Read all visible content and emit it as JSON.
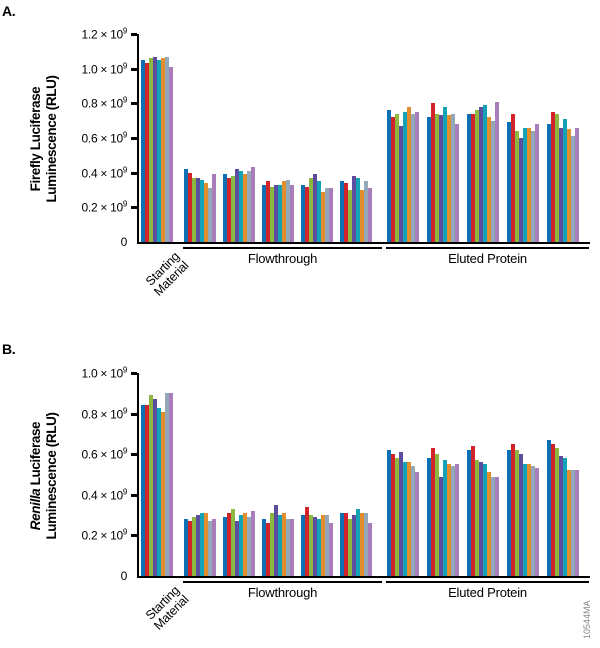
{
  "figure_id": "10544MA",
  "series_colors": [
    "#0d70b2",
    "#d2232a",
    "#8cb842",
    "#5c4d9f",
    "#14a3b6",
    "#e28e2d",
    "#93a9ba",
    "#a97cba"
  ],
  "chart_data": [
    {
      "panel_label": "A.",
      "type": "bar",
      "ylabel": {
        "line1_italic": "",
        "line1": "Firefly Luciferase",
        "line2": "Luminescence (RLU)"
      },
      "ylim_e9": [
        0,
        1.2
      ],
      "tick_times": " × 10",
      "tick_exponent": "9",
      "yticks": [
        {
          "v": "1.2",
          "pow": true
        },
        {
          "v": "1.0",
          "pow": true
        },
        {
          "v": "0.8",
          "pow": true
        },
        {
          "v": "0.6",
          "pow": true
        },
        {
          "v": "0.4",
          "pow": true
        },
        {
          "v": "0.2",
          "pow": true
        },
        {
          "v": "0",
          "pow": false
        }
      ],
      "sections": [
        {
          "label": "Starting Material",
          "label_lines": [
            "Starting",
            "Material"
          ],
          "rotated": true,
          "underline": false,
          "group_count": 1
        },
        {
          "label": "Flowthrough",
          "label_lines": [
            "Flowthrough"
          ],
          "rotated": false,
          "underline": true,
          "group_count": 5
        },
        {
          "label": "Eluted Protein",
          "label_lines": [
            "Eluted Protein"
          ],
          "rotated": false,
          "underline": true,
          "group_count": 5
        }
      ],
      "groups_e9": [
        [
          1.05,
          1.03,
          1.06,
          1.07,
          1.05,
          1.06,
          1.07,
          1.01
        ],
        [
          0.42,
          0.4,
          0.37,
          0.37,
          0.36,
          0.34,
          0.31,
          0.39
        ],
        [
          0.39,
          0.37,
          0.38,
          0.42,
          0.41,
          0.39,
          0.41,
          0.43
        ],
        [
          0.33,
          0.35,
          0.32,
          0.33,
          0.33,
          0.35,
          0.36,
          0.33
        ],
        [
          0.33,
          0.32,
          0.37,
          0.39,
          0.35,
          0.29,
          0.31,
          0.31
        ],
        [
          0.35,
          0.34,
          0.3,
          0.38,
          0.37,
          0.3,
          0.35,
          0.31
        ],
        [
          0.76,
          0.72,
          0.74,
          0.67,
          0.75,
          0.78,
          0.74,
          0.75
        ],
        [
          0.72,
          0.8,
          0.74,
          0.73,
          0.78,
          0.73,
          0.74,
          0.68
        ],
        [
          0.74,
          0.74,
          0.76,
          0.78,
          0.79,
          0.72,
          0.7,
          0.81
        ],
        [
          0.69,
          0.74,
          0.64,
          0.6,
          0.66,
          0.66,
          0.64,
          0.68
        ],
        [
          0.68,
          0.75,
          0.74,
          0.66,
          0.71,
          0.65,
          0.61,
          0.66
        ]
      ]
    },
    {
      "panel_label": "B.",
      "type": "bar",
      "ylabel": {
        "line1_italic": "Renilla",
        "line1": " Luciferase",
        "line2": "Luminescence (RLU)"
      },
      "ylim_e9": [
        0,
        1.0
      ],
      "tick_times": " × 10",
      "tick_exponent": "9",
      "yticks": [
        {
          "v": "1.0",
          "pow": true
        },
        {
          "v": "0.8",
          "pow": true
        },
        {
          "v": "0.6",
          "pow": true
        },
        {
          "v": "0.4",
          "pow": true
        },
        {
          "v": "0.2",
          "pow": true
        },
        {
          "v": "0",
          "pow": false
        }
      ],
      "sections": [
        {
          "label": "Starting Material",
          "label_lines": [
            "Starting",
            "Material"
          ],
          "rotated": true,
          "underline": false,
          "group_count": 1
        },
        {
          "label": "Flowthrough",
          "label_lines": [
            "Flowthrough"
          ],
          "rotated": false,
          "underline": true,
          "group_count": 5
        },
        {
          "label": "Eluted Protein",
          "label_lines": [
            "Eluted Protein"
          ],
          "rotated": false,
          "underline": true,
          "group_count": 5
        }
      ],
      "groups_e9": [
        [
          0.84,
          0.84,
          0.89,
          0.87,
          0.83,
          0.81,
          0.9,
          0.9
        ],
        [
          0.28,
          0.27,
          0.29,
          0.3,
          0.31,
          0.31,
          0.27,
          0.28
        ],
        [
          0.29,
          0.31,
          0.33,
          0.27,
          0.3,
          0.31,
          0.29,
          0.32
        ],
        [
          0.28,
          0.26,
          0.31,
          0.35,
          0.3,
          0.31,
          0.28,
          0.28
        ],
        [
          0.3,
          0.34,
          0.3,
          0.29,
          0.28,
          0.3,
          0.3,
          0.26
        ],
        [
          0.31,
          0.31,
          0.28,
          0.3,
          0.33,
          0.31,
          0.31,
          0.26
        ],
        [
          0.62,
          0.6,
          0.58,
          0.61,
          0.56,
          0.56,
          0.54,
          0.51
        ],
        [
          0.58,
          0.63,
          0.6,
          0.49,
          0.57,
          0.55,
          0.54,
          0.55
        ],
        [
          0.62,
          0.64,
          0.57,
          0.56,
          0.55,
          0.51,
          0.49,
          0.49
        ],
        [
          0.62,
          0.65,
          0.62,
          0.6,
          0.55,
          0.55,
          0.54,
          0.53
        ],
        [
          0.67,
          0.65,
          0.63,
          0.59,
          0.58,
          0.52,
          0.52,
          0.52
        ]
      ]
    }
  ]
}
